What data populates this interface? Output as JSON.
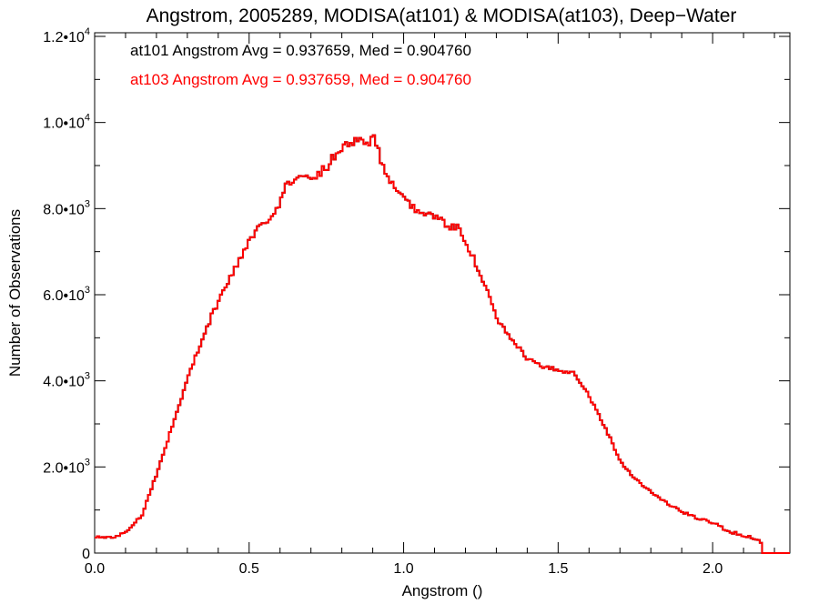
{
  "chart_data": {
    "type": "line",
    "title": "Angstrom, 2005289, MODISA(at101) & MODISA(at103), Deep−Water",
    "xlabel": "Angstrom ()",
    "ylabel": "Number of Observations",
    "xlim": [
      0.0,
      2.25
    ],
    "ylim": [
      0,
      12000
    ],
    "grid": false,
    "x_ticks": [
      {
        "value": 0.0,
        "label": "0.0"
      },
      {
        "value": 0.5,
        "label": "0.5"
      },
      {
        "value": 1.0,
        "label": "1.0"
      },
      {
        "value": 1.5,
        "label": "1.5"
      },
      {
        "value": 2.0,
        "label": "2.0"
      }
    ],
    "y_ticks": [
      {
        "value": 0,
        "mant": "0",
        "exp": ""
      },
      {
        "value": 2000,
        "mant": "2.0•10",
        "exp": "3"
      },
      {
        "value": 4000,
        "mant": "4.0•10",
        "exp": "3"
      },
      {
        "value": 6000,
        "mant": "6.0•10",
        "exp": "3"
      },
      {
        "value": 8000,
        "mant": "8.0•10",
        "exp": "3"
      },
      {
        "value": 10000,
        "mant": "1.0•10",
        "exp": "4"
      },
      {
        "value": 12000,
        "mant": "1.2•10",
        "exp": "4"
      }
    ],
    "annotations": [
      {
        "text": "at101 Angstrom Avg = 0.937659, Med = 0.904760",
        "color": "#000000"
      },
      {
        "text": "at103 Angstrom Avg = 0.937659, Med = 0.904760",
        "color": "#ff0000"
      }
    ],
    "series": [
      {
        "color": "#000000",
        "x": [
          0.0,
          0.05,
          0.1,
          0.15,
          0.2,
          0.25,
          0.3,
          0.35,
          0.4,
          0.45,
          0.5,
          0.55,
          0.6,
          0.62,
          0.65,
          0.7,
          0.75,
          0.8,
          0.85,
          0.88,
          0.9,
          0.92,
          0.95,
          1.0,
          1.05,
          1.1,
          1.15,
          1.18,
          1.2,
          1.25,
          1.3,
          1.35,
          1.4,
          1.45,
          1.5,
          1.55,
          1.6,
          1.65,
          1.7,
          1.75,
          1.8,
          1.85,
          1.9,
          1.95,
          2.0,
          2.05,
          2.1,
          2.13,
          2.15,
          2.16,
          2.25
        ],
        "values": [
          380,
          350,
          500,
          900,
          1900,
          3000,
          4100,
          5100,
          5900,
          6600,
          7300,
          7700,
          8200,
          8600,
          8700,
          8700,
          9000,
          9500,
          9600,
          9550,
          9650,
          9200,
          8700,
          8150,
          7950,
          7800,
          7550,
          7550,
          7200,
          6400,
          5400,
          4900,
          4500,
          4300,
          4250,
          4200,
          3600,
          2900,
          2100,
          1700,
          1400,
          1150,
          950,
          800,
          700,
          500,
          400,
          350,
          300,
          0,
          0
        ]
      },
      {
        "color": "#ff0000",
        "x": [
          0.0,
          0.05,
          0.1,
          0.15,
          0.2,
          0.25,
          0.3,
          0.35,
          0.4,
          0.45,
          0.5,
          0.55,
          0.6,
          0.62,
          0.65,
          0.7,
          0.75,
          0.8,
          0.85,
          0.88,
          0.9,
          0.92,
          0.95,
          1.0,
          1.05,
          1.1,
          1.15,
          1.18,
          1.2,
          1.25,
          1.3,
          1.35,
          1.4,
          1.45,
          1.5,
          1.55,
          1.6,
          1.65,
          1.7,
          1.75,
          1.8,
          1.85,
          1.9,
          1.95,
          2.0,
          2.05,
          2.1,
          2.13,
          2.15,
          2.16,
          2.25
        ],
        "values": [
          380,
          350,
          500,
          900,
          1900,
          3000,
          4100,
          5100,
          5900,
          6600,
          7300,
          7700,
          8200,
          8600,
          8700,
          8700,
          9000,
          9500,
          9600,
          9550,
          9650,
          9200,
          8700,
          8150,
          7950,
          7800,
          7550,
          7550,
          7200,
          6400,
          5400,
          4900,
          4500,
          4300,
          4250,
          4200,
          3600,
          2900,
          2100,
          1700,
          1400,
          1150,
          950,
          800,
          700,
          500,
          400,
          350,
          300,
          0,
          0
        ]
      }
    ]
  }
}
